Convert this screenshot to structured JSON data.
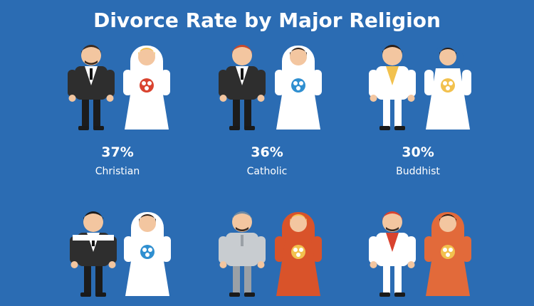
{
  "title": "Divorce Rate by Major Religion",
  "items": [
    {
      "value": "37%",
      "label": "Christian"
    },
    {
      "value": "36%",
      "label": "Catholic"
    },
    {
      "value": "30%",
      "label": "Buddhist"
    }
  ]
}
